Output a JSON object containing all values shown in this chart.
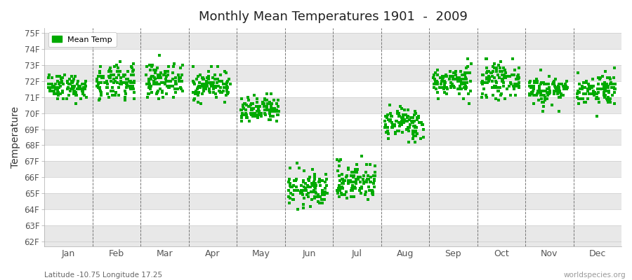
{
  "title": "Monthly Mean Temperatures 1901  -  2009",
  "ylabel": "Temperature",
  "xlabel_labels": [
    "Jan",
    "Feb",
    "Mar",
    "Apr",
    "May",
    "Jun",
    "Jul",
    "Aug",
    "Sep",
    "Oct",
    "Nov",
    "Dec"
  ],
  "ytick_labels": [
    "62F",
    "63F",
    "64F",
    "65F",
    "66F",
    "67F",
    "68F",
    "69F",
    "70F",
    "71F",
    "72F",
    "73F",
    "74F",
    "75F"
  ],
  "ytick_values": [
    62,
    63,
    64,
    65,
    66,
    67,
    68,
    69,
    70,
    71,
    72,
    73,
    74,
    75
  ],
  "ylim": [
    61.7,
    75.3
  ],
  "dot_color": "#00aa00",
  "background_color": "#ffffff",
  "alt_band_color": "#e8e8e8",
  "legend_label": "Mean Temp",
  "subtitle": "Latitude -10.75 Longitude 17.25",
  "watermark": "worldspecies.org",
  "monthly_means": [
    71.65,
    71.85,
    72.05,
    71.75,
    70.15,
    65.25,
    65.75,
    69.35,
    71.95,
    72.05,
    71.45,
    71.5
  ],
  "monthly_stds": [
    0.4,
    0.55,
    0.5,
    0.45,
    0.42,
    0.55,
    0.6,
    0.5,
    0.45,
    0.5,
    0.45,
    0.48
  ],
  "seed": 42,
  "n_years": 109
}
